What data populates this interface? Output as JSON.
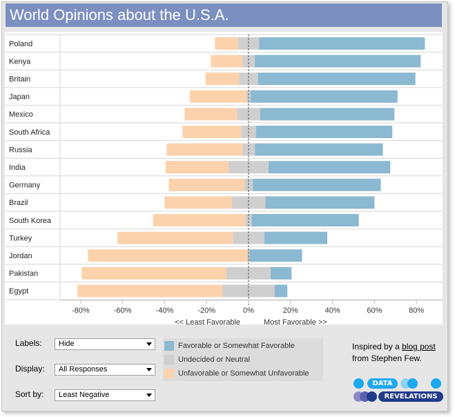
{
  "title": "World Opinions about the U.S.A.",
  "colors": {
    "favorable": "#8bb9d1",
    "neutral": "#cfcfcf",
    "unfavorable": "#fcd2ac",
    "title_bar": "#7b8fc1",
    "logo_cyan": "#1ea8f0",
    "logo_navy": "#223a8a",
    "logo_purple": "#8e8ac6"
  },
  "chart_data": {
    "type": "bar",
    "orientation": "horizontal-diverging",
    "categories": [
      "Poland",
      "Kenya",
      "Britain",
      "Japan",
      "Mexico",
      "South Africa",
      "Russia",
      "India",
      "Germany",
      "Brazil",
      "South Korea",
      "Turkey",
      "Jordan",
      "Pakistan",
      "Egypt"
    ],
    "series": [
      {
        "name": "Unfavorable or Somewhat Unfavorable",
        "values": [
          -11,
          -15,
          -16,
          -27,
          -25,
          -28,
          -36,
          -30,
          -36,
          -32,
          -44,
          -55,
          -76,
          -69,
          -69
        ]
      },
      {
        "name": "Undecided or Neutral",
        "values": [
          10,
          6,
          9,
          2,
          11,
          7,
          6,
          19,
          4,
          16,
          3,
          15,
          1,
          21,
          25
        ]
      },
      {
        "name": "Favorable or Somewhat Favorable",
        "values": [
          79,
          79,
          75,
          70,
          64,
          65,
          61,
          58,
          61,
          52,
          51,
          30,
          25,
          10,
          6
        ]
      }
    ],
    "neutral_position": "centered on 0",
    "xlim": [
      -90,
      85
    ],
    "xticks": [
      -80,
      -60,
      -40,
      -20,
      0,
      20,
      40,
      60,
      80
    ],
    "xtick_labels": [
      "-80%",
      "-60%",
      "-40%",
      "-20%",
      "0%",
      "20%",
      "40%",
      "60%",
      "80%"
    ],
    "xlabel_left": "<<  Least Favorable",
    "xlabel_right": "Most Favorable >>",
    "legend": [
      "Favorable or Somewhat Favorable",
      "Undecided or Neutral",
      "Unfavorable or Somewhat Unfavorable"
    ]
  },
  "controls": {
    "labels": {
      "label": "Labels:",
      "value": "Hide"
    },
    "display": {
      "label": "Display:",
      "value": "All Responses"
    },
    "sort": {
      "label": "Sort by:",
      "value": "Least Negative"
    }
  },
  "credit": {
    "prefix": "Inspired by a ",
    "link": "blog post",
    "suffix": "from Stephen Few."
  },
  "logo": {
    "top_word": "DATA",
    "bottom_word": "REVELATIONS"
  }
}
